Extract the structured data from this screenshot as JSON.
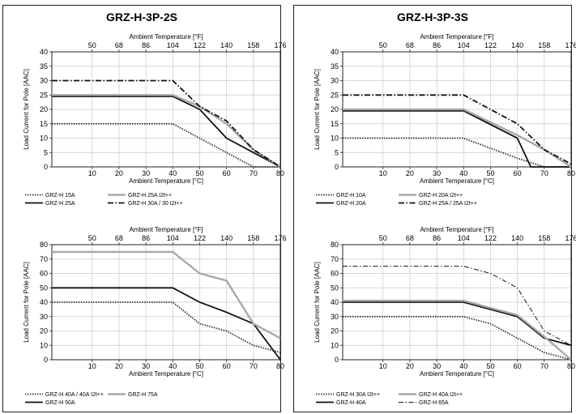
{
  "panels": [
    {
      "title": "GRZ-H-3P-2S"
    },
    {
      "title": "GRZ-H-3P-3S"
    }
  ],
  "chart_data": [
    {
      "type": "line",
      "title": "GRZ-H-3P-2S",
      "xlabel": "Ambient Temperature [°C]",
      "x2label": "Ambient Temperature [°F]",
      "ylabel": "Load Current for Pole [AAC]",
      "xlim": [
        -5,
        80
      ],
      "ylim": [
        0,
        40
      ],
      "xticks": [
        10,
        20,
        30,
        40,
        50,
        60,
        70,
        80
      ],
      "yticks": [
        0,
        5,
        10,
        15,
        20,
        25,
        30,
        35,
        40
      ],
      "fticks": [
        {
          "c": 10,
          "label": "50"
        },
        {
          "c": 20,
          "label": "68"
        },
        {
          "c": 30,
          "label": "86"
        },
        {
          "c": 40,
          "label": "104"
        },
        {
          "c": 50,
          "label": "122"
        },
        {
          "c": 60,
          "label": "140"
        },
        {
          "c": 70,
          "label": "158"
        },
        {
          "c": 80,
          "label": "176"
        }
      ],
      "grid": true,
      "series": [
        {
          "name": "GRZ-H 15A",
          "style": "dotted",
          "x": [
            -5,
            40,
            60,
            70,
            80
          ],
          "y": [
            15,
            15,
            5,
            0,
            0
          ]
        },
        {
          "name": "GRZ-H 25A",
          "style": "solid",
          "x": [
            -5,
            40,
            50,
            60,
            70,
            80
          ],
          "y": [
            24.5,
            24.5,
            20,
            10,
            5,
            0
          ]
        },
        {
          "name": "GRZ-H 25A  I2t++",
          "style": "gray",
          "x": [
            -5,
            40,
            50,
            60,
            70,
            80
          ],
          "y": [
            25,
            25,
            21,
            15,
            6,
            0
          ]
        },
        {
          "name": "GRZ-H 30A / 30 I2t++",
          "style": "dashdot",
          "x": [
            -5,
            40,
            50,
            60,
            70,
            80
          ],
          "y": [
            30,
            30,
            21,
            16,
            6,
            0
          ]
        }
      ],
      "legend_rows": [
        [
          "GRZ-H 15A",
          "GRZ-H 25A  I2t++"
        ],
        [
          "GRZ-H 25A",
          "GRZ-H 30A / 30 I2t++"
        ]
      ]
    },
    {
      "type": "line",
      "title": "GRZ-H-3P-3S",
      "xlabel": "Ambient Temperature [°C]",
      "x2label": "Ambient Temperature [°F]",
      "ylabel": "Load Current for Pole [AAC]",
      "xlim": [
        -5,
        80
      ],
      "ylim": [
        0,
        40
      ],
      "xticks": [
        10,
        20,
        30,
        40,
        50,
        60,
        70,
        80
      ],
      "yticks": [
        0,
        5,
        10,
        15,
        20,
        25,
        30,
        35,
        40
      ],
      "fticks": [
        {
          "c": 10,
          "label": "50"
        },
        {
          "c": 20,
          "label": "68"
        },
        {
          "c": 30,
          "label": "86"
        },
        {
          "c": 40,
          "label": "104"
        },
        {
          "c": 50,
          "label": "122"
        },
        {
          "c": 60,
          "label": "140"
        },
        {
          "c": 70,
          "label": "158"
        },
        {
          "c": 80,
          "label": "176"
        }
      ],
      "grid": true,
      "series": [
        {
          "name": "GRZ-H 10A",
          "style": "dotted",
          "x": [
            -5,
            40,
            60,
            70,
            80
          ],
          "y": [
            10,
            10,
            3,
            0,
            0
          ]
        },
        {
          "name": "GRZ-H 20A",
          "style": "solid",
          "x": [
            -5,
            40,
            60,
            65,
            80
          ],
          "y": [
            19.5,
            19.5,
            10,
            0,
            0
          ]
        },
        {
          "name": "GRZ-H 20A  I2t++",
          "style": "gray",
          "x": [
            -5,
            40,
            60,
            70,
            80
          ],
          "y": [
            20,
            20,
            11,
            6,
            0
          ]
        },
        {
          "name": "GRZ-H 25A / 25A I2t++",
          "style": "dashdot",
          "x": [
            -5,
            40,
            60,
            70,
            80
          ],
          "y": [
            25,
            25,
            15,
            6,
            1
          ]
        }
      ],
      "legend_rows": [
        [
          "GRZ-H 10A",
          "GRZ-H 20A  I2t++"
        ],
        [
          "GRZ-H 20A",
          "GRZ-H 25A / 25A I2t++"
        ]
      ]
    },
    {
      "type": "line",
      "title": "",
      "xlabel": "Ambient Temperature [°C]",
      "x2label": "Ambient Temperature [°F]",
      "ylabel": "Load Current for Pole [AAC]",
      "xlim": [
        -5,
        80
      ],
      "ylim": [
        0,
        80
      ],
      "xticks": [
        10,
        20,
        30,
        40,
        50,
        60,
        70,
        80
      ],
      "yticks": [
        0,
        10,
        20,
        30,
        40,
        50,
        60,
        70,
        80
      ],
      "fticks": [
        {
          "c": 10,
          "label": "50"
        },
        {
          "c": 20,
          "label": "68"
        },
        {
          "c": 30,
          "label": "86"
        },
        {
          "c": 40,
          "label": "104"
        },
        {
          "c": 50,
          "label": "122"
        },
        {
          "c": 60,
          "label": "140"
        },
        {
          "c": 70,
          "label": "158"
        },
        {
          "c": 80,
          "label": "176"
        }
      ],
      "grid": true,
      "series": [
        {
          "name": "GRZ-H 40A / 40A I2t++",
          "style": "dotted",
          "x": [
            -5,
            40,
            50,
            60,
            70,
            80
          ],
          "y": [
            40,
            40,
            25,
            20,
            10,
            5
          ]
        },
        {
          "name": "GRZ-H 50A",
          "style": "solid",
          "x": [
            -5,
            40,
            50,
            60,
            70,
            80
          ],
          "y": [
            50,
            50,
            40,
            33,
            25,
            0
          ]
        },
        {
          "name": "GRZ-H 75A",
          "style": "gray",
          "x": [
            -5,
            40,
            50,
            60,
            70,
            80
          ],
          "y": [
            75,
            75,
            60,
            55,
            25,
            15
          ]
        }
      ],
      "legend_rows": [
        [
          "GRZ-H 40A / 40A I2t++",
          "GRZ-H 75A"
        ],
        [
          "GRZ-H 50A",
          ""
        ]
      ]
    },
    {
      "type": "line",
      "title": "",
      "xlabel": "Ambient Temperature [°C]",
      "x2label": "Ambient Temperature [°F]",
      "ylabel": "Load Current for Pole [AAC]",
      "xlim": [
        -5,
        80
      ],
      "ylim": [
        0,
        80
      ],
      "xticks": [
        10,
        20,
        30,
        40,
        50,
        60,
        70,
        80
      ],
      "yticks": [
        0,
        10,
        20,
        30,
        40,
        50,
        60,
        70,
        80
      ],
      "fticks": [
        {
          "c": 10,
          "label": "50"
        },
        {
          "c": 20,
          "label": "68"
        },
        {
          "c": 30,
          "label": "86"
        },
        {
          "c": 40,
          "label": "104"
        },
        {
          "c": 50,
          "label": "122"
        },
        {
          "c": 60,
          "label": "140"
        },
        {
          "c": 70,
          "label": "158"
        },
        {
          "c": 80,
          "label": "176"
        }
      ],
      "grid": true,
      "series": [
        {
          "name": "GRZ-H 30A  I2t++",
          "style": "dotted",
          "x": [
            -5,
            40,
            50,
            60,
            70,
            80
          ],
          "y": [
            30,
            30,
            25,
            15,
            5,
            0
          ]
        },
        {
          "name": "GRZ-H 40A",
          "style": "solid",
          "x": [
            -5,
            40,
            50,
            60,
            70,
            80
          ],
          "y": [
            40,
            40,
            35,
            30,
            15,
            10
          ]
        },
        {
          "name": "GRZ-H 40A  I2t++",
          "style": "gray",
          "x": [
            -5,
            40,
            50,
            60,
            70,
            80
          ],
          "y": [
            41,
            41,
            36,
            31,
            16,
            0
          ]
        },
        {
          "name": "GRZ-H 65A",
          "style": "dashdot_thin",
          "x": [
            -5,
            40,
            50,
            60,
            70,
            80
          ],
          "y": [
            65,
            65,
            60,
            50,
            20,
            10
          ]
        }
      ],
      "legend_rows": [
        [
          "GRZ-H 30A  I2t++",
          "GRZ-H 40A  I2t++"
        ],
        [
          "GRZ-H 40A",
          "GRZ-H 65A"
        ]
      ]
    }
  ]
}
